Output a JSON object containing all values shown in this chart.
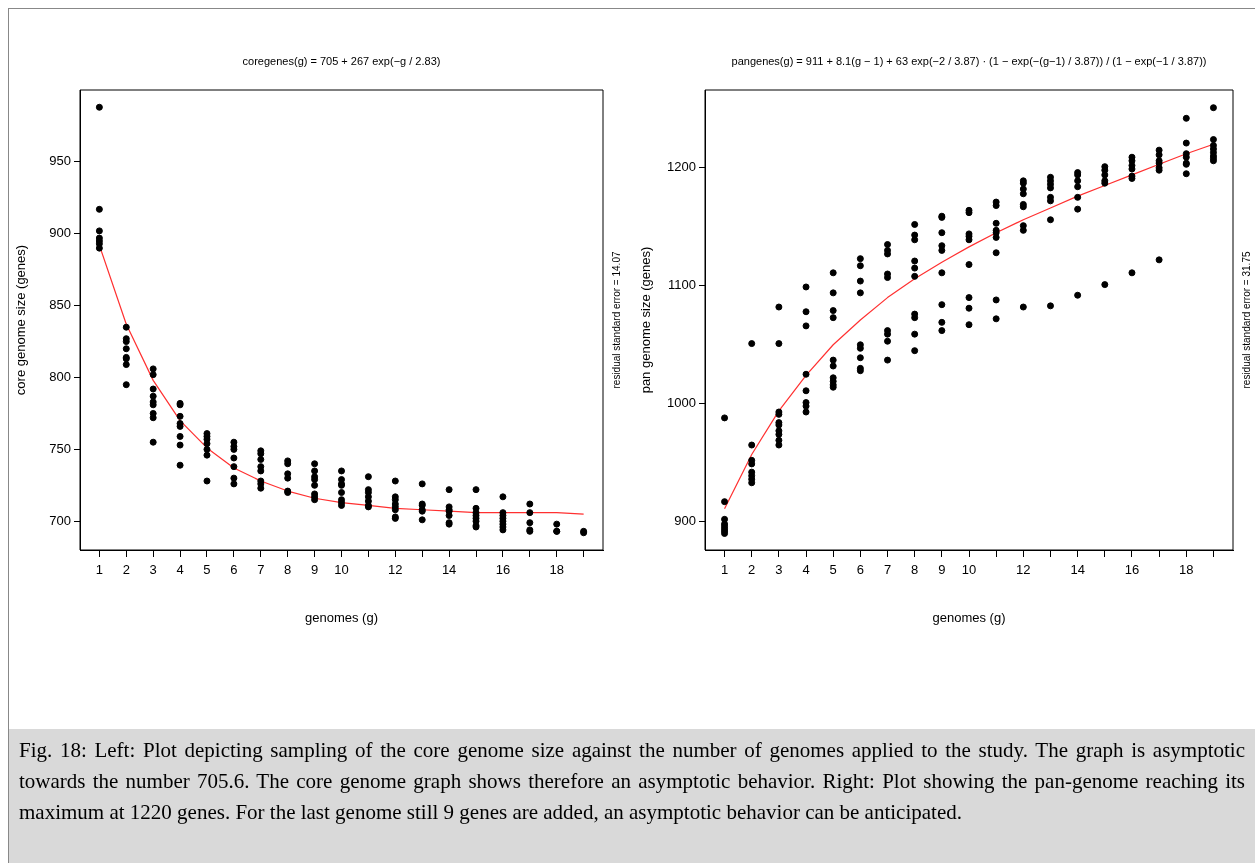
{
  "chart_data": [
    {
      "type": "scatter",
      "title": "coregenes(g) = 705 + 267 exp(−g / 2.83)",
      "xlabel": "genomes (g)",
      "ylabel": "core genome size (genes)",
      "xlim": [
        0.28,
        19.72
      ],
      "ylim": [
        680,
        1000
      ],
      "xticks": [
        1,
        2,
        3,
        4,
        5,
        6,
        7,
        8,
        9,
        10,
        {
          "value": 11,
          "label": null
        },
        12,
        {
          "value": 13,
          "label": null
        },
        14,
        {
          "value": 15,
          "label": null
        },
        16,
        {
          "value": 17,
          "label": null
        },
        18,
        {
          "value": 19,
          "label": null
        }
      ],
      "yticks": [
        700,
        750,
        800,
        850,
        900,
        950
      ],
      "series": [
        {
          "marker": "circle",
          "color": "#000000",
          "x": [
            1,
            1,
            1,
            1,
            1,
            1,
            1,
            2,
            2,
            2,
            2,
            2,
            2,
            2,
            2,
            3,
            3,
            3,
            3,
            3,
            3,
            3,
            3,
            3,
            4,
            4,
            4,
            4,
            4,
            4,
            4,
            4,
            5,
            5,
            5,
            5,
            5,
            5,
            5,
            6,
            6,
            6,
            6,
            6,
            6,
            6,
            7,
            7,
            7,
            7,
            7,
            7,
            7,
            7,
            8,
            8,
            8,
            8,
            8,
            8,
            9,
            9,
            9,
            9,
            9,
            9,
            9,
            9,
            10,
            10,
            10,
            10,
            10,
            10,
            10,
            10,
            11,
            11,
            11,
            11,
            11,
            11,
            11,
            12,
            12,
            12,
            12,
            12,
            12,
            12,
            12,
            13,
            13,
            13,
            13,
            13,
            13,
            14,
            14,
            14,
            14,
            14,
            14,
            14,
            15,
            15,
            15,
            15,
            15,
            15,
            15,
            15,
            16,
            16,
            16,
            16,
            16,
            16,
            16,
            16,
            17,
            17,
            17,
            17,
            17,
            18,
            18,
            18,
            19,
            19
          ],
          "values": [
            988,
            917,
            902,
            897,
            895,
            893,
            890,
            835,
            827,
            825,
            820,
            814,
            813,
            809,
            795,
            806,
            802,
            792,
            787,
            783,
            781,
            775,
            772,
            755,
            782,
            781,
            773,
            768,
            766,
            759,
            753,
            739,
            761,
            759,
            757,
            754,
            750,
            746,
            728,
            755,
            752,
            750,
            744,
            738,
            730,
            726,
            749,
            747,
            743,
            738,
            735,
            728,
            726,
            723,
            742,
            740,
            733,
            730,
            721,
            720,
            740,
            735,
            731,
            729,
            725,
            719,
            717,
            715,
            735,
            729,
            726,
            725,
            720,
            715,
            713,
            711,
            731,
            722,
            720,
            717,
            714,
            711,
            710,
            728,
            717,
            715,
            712,
            710,
            708,
            703,
            702,
            726,
            712,
            711,
            708,
            707,
            701,
            722,
            710,
            708,
            707,
            704,
            699,
            698,
            722,
            709,
            706,
            704,
            702,
            700,
            697,
            696,
            717,
            706,
            704,
            702,
            700,
            698,
            696,
            694,
            712,
            706,
            699,
            694,
            693,
            698,
            693,
            693,
            693,
            692
          ]
        },
        {
          "type": "line",
          "color": "#ff3030",
          "x": [
            1,
            2,
            3,
            4,
            5,
            6,
            7,
            8,
            9,
            10,
            11,
            12,
            13,
            14,
            15,
            16,
            17,
            18,
            19
          ],
          "values": [
            892,
            837,
            798,
            770,
            751,
            737,
            728,
            721,
            716,
            713,
            711,
            709,
            708,
            707,
            706,
            706,
            706,
            706,
            705
          ]
        }
      ],
      "annotations": [
        "residual standard error = 14.07",
        "Fig. 18: Left: Plot depicting sampling of the core genome size against the number of genomes applied to the study. The graph is asymptotic towards the number 705.6. The core genome graph shows therefore an asymptotic behavior. Right: Plot showing the pan-genome reaching its maximum at 1220 genes. For the last genome still 9 genes are added, an asymptotic behavior can be anticipated."
      ]
    },
    {
      "type": "scatter",
      "title": "pangenes(g) = 911 + 8.1(g − 1) + 63 exp(−2 / 3.87) · (1 − exp(−(g−1) / 3.87)) / (1 − exp(−1 / 3.87))",
      "xlabel": "genomes (g)",
      "ylabel": "pan genome size (genes)",
      "xlim": [
        0.28,
        19.72
      ],
      "ylim": [
        876,
        1266
      ],
      "xticks": [
        1,
        2,
        3,
        4,
        5,
        6,
        7,
        8,
        9,
        10,
        {
          "value": 11,
          "label": null
        },
        12,
        {
          "value": 13,
          "label": null
        },
        14,
        {
          "value": 15,
          "label": null
        },
        16,
        {
          "value": 17,
          "label": null
        },
        18,
        {
          "value": 19,
          "label": null
        }
      ],
      "yticks": [
        900,
        1000,
        1100,
        1200
      ],
      "series": [
        {
          "marker": "circle",
          "color": "#000000",
          "x": [
            1,
            1,
            1,
            1,
            1,
            1,
            1,
            1,
            2,
            2,
            2,
            2,
            2,
            2,
            2,
            2,
            3,
            3,
            3,
            3,
            3,
            3,
            3,
            3,
            3,
            3,
            4,
            4,
            4,
            4,
            4,
            4,
            4,
            4,
            5,
            5,
            5,
            5,
            5,
            5,
            5,
            5,
            5,
            5,
            6,
            6,
            6,
            6,
            6,
            6,
            6,
            6,
            6,
            7,
            7,
            7,
            7,
            7,
            7,
            7,
            7,
            7,
            8,
            8,
            8,
            8,
            8,
            8,
            8,
            8,
            8,
            8,
            9,
            9,
            9,
            9,
            9,
            9,
            9,
            9,
            9,
            10,
            10,
            10,
            10,
            10,
            10,
            10,
            10,
            10,
            11,
            11,
            11,
            11,
            11,
            11,
            11,
            11,
            11,
            12,
            12,
            12,
            12,
            12,
            12,
            12,
            12,
            12,
            13,
            13,
            13,
            13,
            13,
            13,
            13,
            13,
            14,
            14,
            14,
            14,
            14,
            14,
            14,
            15,
            15,
            15,
            15,
            15,
            15,
            16,
            16,
            16,
            16,
            16,
            16,
            16,
            17,
            17,
            17,
            17,
            17,
            17,
            17,
            18,
            18,
            18,
            18,
            18,
            18,
            18,
            19,
            19,
            19,
            19,
            19,
            19,
            19,
            19
          ],
          "values": [
            988,
            917,
            902,
            898,
            896,
            894,
            892,
            890,
            1051,
            965,
            952,
            949,
            942,
            939,
            936,
            933,
            1082,
            1051,
            993,
            991,
            984,
            982,
            977,
            974,
            969,
            965,
            1099,
            1078,
            1066,
            1025,
            1011,
            1001,
            998,
            993,
            1111,
            1094,
            1079,
            1073,
            1037,
            1032,
            1022,
            1019,
            1016,
            1014,
            1123,
            1117,
            1104,
            1094,
            1050,
            1047,
            1039,
            1030,
            1028,
            1135,
            1130,
            1127,
            1110,
            1107,
            1062,
            1059,
            1053,
            1037,
            1152,
            1143,
            1139,
            1121,
            1115,
            1108,
            1076,
            1073,
            1059,
            1045,
            1159,
            1158,
            1145,
            1134,
            1130,
            1111,
            1084,
            1069,
            1062,
            1164,
            1162,
            1144,
            1142,
            1139,
            1118,
            1090,
            1081,
            1067,
            1171,
            1168,
            1153,
            1147,
            1145,
            1141,
            1128,
            1088,
            1072,
            1189,
            1187,
            1182,
            1178,
            1169,
            1167,
            1151,
            1147,
            1082,
            1192,
            1189,
            1186,
            1183,
            1175,
            1172,
            1156,
            1083,
            1196,
            1194,
            1189,
            1184,
            1175,
            1165,
            1092,
            1201,
            1198,
            1194,
            1189,
            1187,
            1101,
            1209,
            1206,
            1202,
            1199,
            1193,
            1191,
            1111,
            1215,
            1211,
            1206,
            1204,
            1200,
            1198,
            1122,
            1242,
            1221,
            1212,
            1209,
            1204,
            1203,
            1195,
            1251,
            1224,
            1219,
            1216,
            1213,
            1210,
            1208,
            1206
          ]
        },
        {
          "type": "line",
          "color": "#ff3030",
          "x": [
            1,
            2,
            3,
            4,
            5,
            6,
            7,
            8,
            9,
            10,
            11,
            12,
            13,
            14,
            15,
            16,
            17,
            18,
            19
          ],
          "values": [
            911,
            957,
            994,
            1024,
            1050,
            1071,
            1090,
            1106,
            1120,
            1133,
            1145,
            1156,
            1166,
            1176,
            1185,
            1194,
            1203,
            1212,
            1220
          ]
        }
      ],
      "annotations": [
        "residual standard error = 31.75"
      ]
    }
  ]
}
